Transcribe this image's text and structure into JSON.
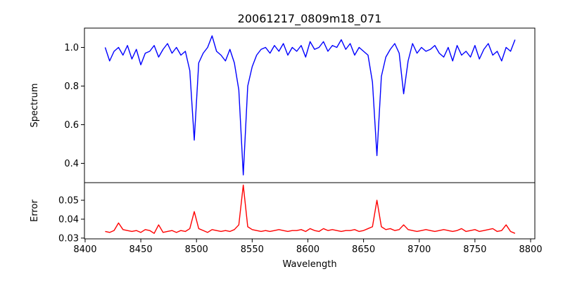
{
  "chart_data": [
    {
      "type": "line",
      "title": "20061217_0809m18_071",
      "xlabel": "",
      "ylabel": "Spectrum",
      "xlim": [
        8399.4,
        8803.8
      ],
      "ylim": [
        0.3,
        1.1
      ],
      "yticks": [
        "0.4",
        "0.6",
        "0.8",
        "1.0"
      ],
      "grid": false,
      "color": "#0000ff",
      "x_start": 8418,
      "x_step": 4,
      "values": [
        1.0,
        0.93,
        0.98,
        1.0,
        0.96,
        1.01,
        0.94,
        0.99,
        0.91,
        0.97,
        0.98,
        1.01,
        0.95,
        0.99,
        1.02,
        0.97,
        1.0,
        0.96,
        0.98,
        0.88,
        0.52,
        0.92,
        0.97,
        1.0,
        1.06,
        0.98,
        0.96,
        0.93,
        0.99,
        0.92,
        0.78,
        0.34,
        0.8,
        0.9,
        0.96,
        0.99,
        1.0,
        0.97,
        1.01,
        0.98,
        1.02,
        0.96,
        1.0,
        0.98,
        1.01,
        0.95,
        1.03,
        0.99,
        1.0,
        1.03,
        0.98,
        1.01,
        1.0,
        1.04,
        0.99,
        1.02,
        0.96,
        1.0,
        0.98,
        0.96,
        0.82,
        0.44,
        0.85,
        0.95,
        0.99,
        1.02,
        0.97,
        0.76,
        0.93,
        1.02,
        0.97,
        1.0,
        0.98,
        0.99,
        1.01,
        0.97,
        0.95,
        1.0,
        0.93,
        1.01,
        0.96,
        0.98,
        0.95,
        1.01,
        0.94,
        0.99,
        1.02,
        0.96,
        0.98,
        0.93,
        1.0,
        0.98,
        1.04
      ]
    },
    {
      "type": "line",
      "xlabel": "Wavelength",
      "ylabel": "Error",
      "xlim": [
        8399.4,
        8803.8
      ],
      "ylim": [
        0.0296,
        0.0593
      ],
      "xticks": [
        "8400",
        "8450",
        "8500",
        "8550",
        "8600",
        "8650",
        "8700",
        "8750",
        "8800"
      ],
      "yticks": [
        "0.03",
        "0.04",
        "0.05"
      ],
      "grid": false,
      "color": "#ff0000",
      "x_start": 8418,
      "x_step": 4,
      "values": [
        0.0335,
        0.033,
        0.034,
        0.038,
        0.0345,
        0.034,
        0.0335,
        0.034,
        0.033,
        0.0345,
        0.034,
        0.0325,
        0.037,
        0.033,
        0.0335,
        0.034,
        0.033,
        0.034,
        0.0335,
        0.035,
        0.044,
        0.035,
        0.034,
        0.033,
        0.0345,
        0.034,
        0.0335,
        0.034,
        0.0335,
        0.0345,
        0.037,
        0.058,
        0.036,
        0.0345,
        0.034,
        0.0335,
        0.034,
        0.0335,
        0.034,
        0.0345,
        0.034,
        0.0335,
        0.034,
        0.034,
        0.0345,
        0.0335,
        0.035,
        0.034,
        0.0335,
        0.035,
        0.034,
        0.0345,
        0.034,
        0.0335,
        0.034,
        0.034,
        0.0345,
        0.0335,
        0.034,
        0.035,
        0.036,
        0.05,
        0.036,
        0.0345,
        0.035,
        0.034,
        0.0345,
        0.037,
        0.0345,
        0.034,
        0.0335,
        0.034,
        0.0345,
        0.034,
        0.0335,
        0.034,
        0.0345,
        0.034,
        0.0335,
        0.034,
        0.035,
        0.0335,
        0.034,
        0.0345,
        0.0335,
        0.034,
        0.0345,
        0.035,
        0.0335,
        0.034,
        0.037,
        0.0335,
        0.0325
      ]
    }
  ]
}
